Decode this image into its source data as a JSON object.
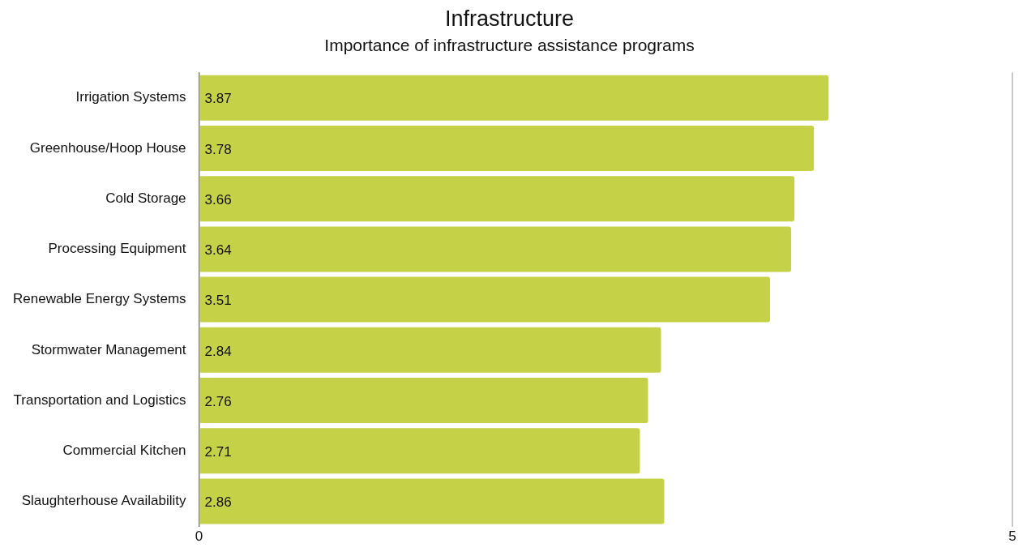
{
  "chart_data": {
    "type": "bar",
    "orientation": "horizontal",
    "title": "Infrastructure",
    "subtitle": "Importance of infrastructure assistance programs",
    "categories": [
      "Irrigation Systems",
      "Greenhouse/Hoop House",
      "Cold Storage",
      "Processing Equipment",
      "Renewable Energy Systems",
      "Stormwater Management",
      "Transportation and Logistics",
      "Commercial Kitchen",
      "Slaughterhouse Availability"
    ],
    "values": [
      3.87,
      3.78,
      3.66,
      3.64,
      3.51,
      2.84,
      2.76,
      2.71,
      2.86
    ],
    "color": "#c5d247",
    "xlim": [
      0,
      5
    ],
    "xticks": [
      0,
      5
    ],
    "grid": "x",
    "legend": false,
    "data_labels": true
  }
}
